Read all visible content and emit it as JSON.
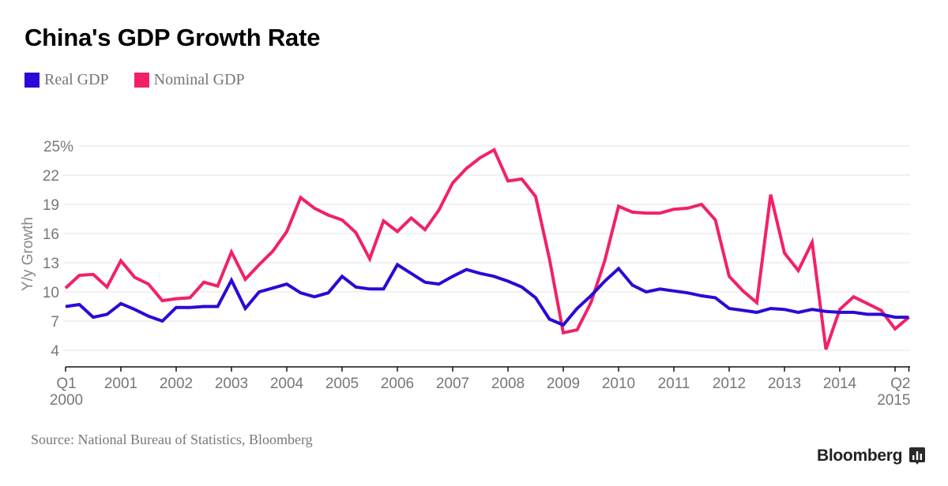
{
  "header": {
    "title": "China's GDP Growth Rate"
  },
  "legend": [
    {
      "label": "Real GDP",
      "color": "#2a0ad6"
    },
    {
      "label": "Nominal GDP",
      "color": "#f2206a"
    }
  ],
  "footer": {
    "source": "Source: National Bureau of Statistics, Bloomberg",
    "brand": "Bloomberg",
    "brand_icon": "bloomberg-bars-icon"
  },
  "chart_data": {
    "type": "line",
    "title": "China's GDP Growth Rate",
    "xlabel": "",
    "ylabel": "Y/y Growth",
    "ylim": [
      2.3,
      25
    ],
    "yticks": [
      {
        "value": 25,
        "label": "25%"
      },
      {
        "value": 22,
        "label": "22"
      },
      {
        "value": 19,
        "label": "19"
      },
      {
        "value": 16,
        "label": "16"
      },
      {
        "value": 13,
        "label": "13"
      },
      {
        "value": 10,
        "label": "10"
      },
      {
        "value": 7,
        "label": "7"
      },
      {
        "value": 4,
        "label": "4"
      }
    ],
    "grid": true,
    "legend_position": "top-left",
    "x_start": "Q1 2000",
    "x_end": "Q2 2015",
    "x_frequency": "quarterly",
    "xticks": [
      {
        "index": 0,
        "label": "Q1",
        "label2": "2000"
      },
      {
        "index": 4,
        "label": "2001"
      },
      {
        "index": 8,
        "label": "2002"
      },
      {
        "index": 12,
        "label": "2003"
      },
      {
        "index": 16,
        "label": "2004"
      },
      {
        "index": 20,
        "label": "2005"
      },
      {
        "index": 24,
        "label": "2006"
      },
      {
        "index": 28,
        "label": "2007"
      },
      {
        "index": 32,
        "label": "2008"
      },
      {
        "index": 36,
        "label": "2009"
      },
      {
        "index": 40,
        "label": "2010"
      },
      {
        "index": 44,
        "label": "2011"
      },
      {
        "index": 48,
        "label": "2012"
      },
      {
        "index": 52,
        "label": "2013"
      },
      {
        "index": 56,
        "label": "2014"
      },
      {
        "index": 60,
        "label": ""
      },
      {
        "index": 61,
        "label": "Q2",
        "label2": "2015"
      }
    ],
    "series": [
      {
        "name": "Real GDP",
        "color": "#2a0ad6",
        "values": [
          8.5,
          8.7,
          7.4,
          7.7,
          8.8,
          8.2,
          7.5,
          7.0,
          8.4,
          8.4,
          8.5,
          8.5,
          11.2,
          8.3,
          10.0,
          10.4,
          10.8,
          9.9,
          9.5,
          9.9,
          11.6,
          10.5,
          10.3,
          10.3,
          12.8,
          11.9,
          11.0,
          10.8,
          11.6,
          12.3,
          11.9,
          11.6,
          11.1,
          10.5,
          9.4,
          7.2,
          6.6,
          8.3,
          9.6,
          11.1,
          12.4,
          10.7,
          10.0,
          10.3,
          10.1,
          9.9,
          9.6,
          9.4,
          8.3,
          8.1,
          7.9,
          8.3,
          8.2,
          7.9,
          8.2,
          8.0,
          7.9,
          7.9,
          7.7,
          7.7,
          7.4,
          7.4
        ]
      },
      {
        "name": "Nominal GDP",
        "color": "#f2206a",
        "values": [
          10.4,
          11.7,
          11.8,
          10.5,
          13.2,
          11.5,
          10.8,
          9.1,
          9.3,
          9.4,
          11.0,
          10.6,
          14.1,
          11.3,
          12.8,
          14.2,
          16.2,
          19.7,
          18.6,
          17.9,
          17.4,
          16.1,
          13.4,
          17.3,
          16.2,
          17.6,
          16.4,
          18.4,
          21.2,
          22.7,
          23.8,
          24.6,
          21.4,
          21.6,
          19.8,
          13.4,
          5.8,
          6.1,
          8.9,
          13.2,
          18.8,
          18.2,
          18.1,
          18.1,
          18.5,
          18.6,
          19.0,
          17.4,
          11.6,
          10.1,
          8.9,
          20.0,
          14.0,
          12.2,
          15.1,
          4.1,
          8.2,
          9.5,
          8.8,
          8.1,
          6.2,
          7.4
        ]
      }
    ]
  }
}
